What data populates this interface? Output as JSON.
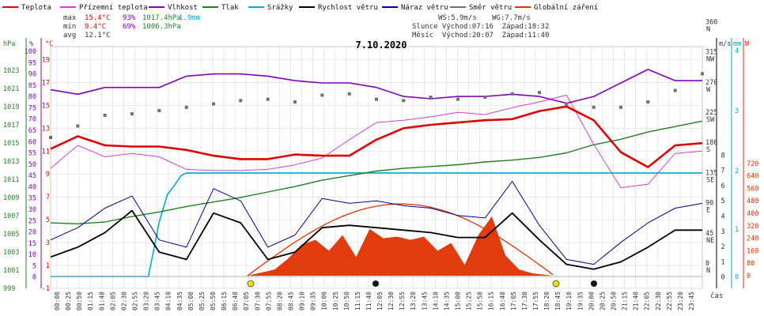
{
  "legend": [
    {
      "label": "Teplota",
      "color": "#e00000"
    },
    {
      "label": "Přízemní teplota",
      "color": "#d040d0"
    },
    {
      "label": "Vlhkost",
      "color": "#8000c0"
    },
    {
      "label": "Tlak",
      "color": "#208020"
    },
    {
      "label": "Srážky",
      "color": "#00a8d8"
    },
    {
      "label": "Rychlost větru",
      "color": "#000000"
    },
    {
      "label": "Náraz větru",
      "color": "#000090"
    },
    {
      "label": "Směr větru",
      "color": "#707070"
    },
    {
      "label": "Globální záření",
      "color": "#e03000"
    }
  ],
  "stats": {
    "max_label": "max",
    "max_temp": "15.4°C",
    "max_hum": "93%",
    "max_press": "1017.4hPa",
    "rain_total": "1.9mm",
    "min_label": "min",
    "min_temp": "9.4°C",
    "min_hum": "69%",
    "min_press": "1006.3hPa",
    "avg_label": "avg",
    "avg_temp": "12.1°C"
  },
  "wind_info": {
    "ws": "WS:5.9m/s",
    "wg": "WG:7.7m/s",
    "sun": "Slunce Východ:07:16  Západ:18:32",
    "moon": "Měsíc  Východ:20:07  Západ:11:40"
  },
  "chart_data": {
    "type": "line",
    "title": "7.10.2020",
    "xlabel": "čas",
    "x_ticks": [
      "00:00",
      "00:25",
      "00:50",
      "01:15",
      "01:40",
      "02:05",
      "02:30",
      "02:55",
      "03:20",
      "03:45",
      "04:10",
      "04:35",
      "05:00",
      "05:25",
      "05:50",
      "06:15",
      "06:40",
      "07:05",
      "07:30",
      "07:55",
      "08:20",
      "08:45",
      "09:10",
      "09:35",
      "10:00",
      "10:25",
      "10:50",
      "11:15",
      "11:40",
      "12:05",
      "12:30",
      "12:55",
      "13:20",
      "13:45",
      "14:10",
      "14:35",
      "15:00",
      "15:25",
      "15:50",
      "16:15",
      "16:40",
      "17:05",
      "17:30",
      "17:55",
      "18:20",
      "18:45",
      "19:10",
      "19:35",
      "20:00",
      "20:25",
      "20:50",
      "21:15",
      "21:40",
      "22:05",
      "22:30",
      "22:55",
      "23:20",
      "23:45"
    ],
    "axes": {
      "hpa": {
        "unit": "hPa",
        "ticks": [
          "999",
          "1001",
          "1003",
          "1005",
          "1007",
          "1009",
          "1011",
          "1013",
          "1015",
          "1017",
          "1019",
          "1021",
          "1023"
        ],
        "range": [
          999,
          1025
        ]
      },
      "pct": {
        "unit": "%",
        "ticks": [
          "0",
          "5",
          "10",
          "15",
          "20",
          "25",
          "30",
          "35",
          "40",
          "45",
          "50",
          "55",
          "60",
          "65",
          "70",
          "75",
          "80",
          "85",
          "90",
          "95",
          "100"
        ],
        "range": [
          -5,
          100
        ]
      },
      "temp": {
        "unit": "°C",
        "ticks": [
          "-1",
          "1",
          "3",
          "5",
          "7",
          "9",
          "11",
          "13",
          "15",
          "17",
          "19"
        ],
        "range": [
          -1,
          20
        ]
      },
      "ms": {
        "unit": "m/s",
        "ticks": [
          "0",
          "1",
          "2",
          "3",
          "4",
          "5",
          "6",
          "7",
          "8"
        ],
        "range": [
          -1,
          20
        ]
      },
      "dir": {
        "ticks": [
          "0 N",
          "45 NE",
          "90 E",
          "135 SE",
          "180 S",
          "225 SW",
          "270 W",
          "315 NW",
          "360 N"
        ]
      },
      "mm": {
        "unit": "mm",
        "ticks": [
          "0",
          "1",
          "2",
          "3",
          "4"
        ],
        "range": [
          -0.5,
          5
        ]
      },
      "w": {
        "unit": "W",
        "ticks": [
          "0",
          "80",
          "160",
          "240",
          "320",
          "400",
          "480",
          "560",
          "640",
          "720"
        ],
        "range": [
          -80,
          800
        ]
      }
    },
    "series": [
      {
        "name": "Teplota",
        "unit": "°C",
        "x": [
          0,
          1,
          2,
          3,
          4,
          5,
          6,
          7,
          8,
          9,
          10,
          11,
          12,
          13,
          14,
          15,
          16,
          17,
          18,
          19,
          20,
          21,
          22,
          23,
          24
        ],
        "values": [
          11.2,
          12.3,
          11.5,
          11.4,
          11.4,
          11.1,
          10.6,
          10.3,
          10.3,
          10.7,
          10.6,
          10.6,
          12.0,
          13.0,
          13.3,
          13.5,
          13.7,
          13.8,
          14.5,
          14.9,
          13.7,
          10.9,
          9.6,
          11.5,
          11.7
        ]
      },
      {
        "name": "Přízemní teplota",
        "unit": "°C",
        "x": [
          0,
          1,
          2,
          3,
          4,
          5,
          6,
          7,
          8,
          9,
          10,
          11,
          12,
          13,
          14,
          15,
          16,
          17,
          18,
          19,
          20,
          21,
          22,
          23,
          24
        ],
        "values": [
          9.5,
          11.5,
          10.5,
          10.8,
          10.5,
          9.4,
          9.3,
          9.3,
          9.4,
          9.8,
          10.4,
          12.0,
          13.5,
          13.7,
          14.0,
          14.4,
          14.2,
          14.8,
          15.3,
          15.9,
          11.6,
          7.8,
          8.1,
          10.8,
          11.0
        ]
      },
      {
        "name": "Vlhkost",
        "unit": "%",
        "x": [
          0,
          1,
          2,
          3,
          4,
          5,
          6,
          7,
          8,
          9,
          10,
          11,
          12,
          13,
          14,
          15,
          16,
          17,
          18,
          19,
          20,
          21,
          22,
          23,
          24
        ],
        "values": [
          83,
          81,
          84,
          84,
          84,
          89,
          90,
          90,
          89,
          87,
          86,
          86,
          84,
          80,
          79,
          80,
          80,
          81,
          80,
          77,
          80,
          86,
          92,
          87,
          87
        ]
      },
      {
        "name": "Tlak",
        "unit": "hPa",
        "x": [
          0,
          1,
          2,
          3,
          4,
          5,
          6,
          7,
          8,
          9,
          10,
          11,
          12,
          13,
          14,
          15,
          16,
          17,
          18,
          19,
          20,
          21,
          22,
          23,
          24
        ],
        "values": [
          1006.2,
          1006.1,
          1006.3,
          1006.9,
          1007.4,
          1008.0,
          1008.5,
          1009.0,
          1009.6,
          1010.2,
          1010.9,
          1011.4,
          1011.9,
          1012.2,
          1012.4,
          1012.6,
          1012.9,
          1013.1,
          1013.4,
          1013.9,
          1014.8,
          1015.4,
          1016.2,
          1016.8,
          1017.4
        ]
      },
      {
        "name": "Srážky",
        "unit": "mm",
        "x": [
          0,
          3.6,
          3.8,
          4.0,
          4.3,
          4.6,
          4.8,
          5.0,
          24
        ],
        "values": [
          0,
          0,
          0.5,
          1.0,
          1.5,
          1.7,
          1.85,
          1.9,
          1.9
        ]
      },
      {
        "name": "Rychlost větru",
        "unit": "m/s",
        "x": [
          0,
          1,
          2,
          3,
          4,
          5,
          6,
          7,
          8,
          9,
          10,
          11,
          12,
          13,
          14,
          15,
          16,
          17,
          18,
          19,
          20,
          21,
          22,
          23,
          24
        ],
        "values": [
          0.8,
          1.2,
          1.8,
          2.7,
          1.0,
          0.7,
          2.6,
          2.2,
          0.7,
          1.0,
          2.0,
          2.1,
          2.0,
          1.9,
          1.8,
          1.6,
          1.6,
          2.6,
          1.5,
          0.5,
          0.3,
          0.6,
          1.2,
          1.9,
          1.9
        ]
      },
      {
        "name": "Náraz větru",
        "unit": "m/s",
        "x": [
          0,
          1,
          2,
          3,
          4,
          5,
          6,
          7,
          8,
          9,
          10,
          11,
          12,
          13,
          14,
          15,
          16,
          17,
          18,
          19,
          20,
          21,
          22,
          23,
          24
        ],
        "values": [
          1.5,
          2.0,
          2.8,
          3.3,
          1.5,
          1.2,
          3.6,
          3.1,
          1.2,
          1.7,
          3.2,
          3.0,
          3.1,
          2.9,
          2.8,
          2.5,
          2.4,
          3.9,
          2.1,
          0.7,
          0.5,
          1.4,
          2.2,
          2.8,
          3.0
        ]
      },
      {
        "name": "Směr větru",
        "unit": "°",
        "x": [
          0,
          1,
          2,
          3,
          4,
          5,
          6,
          7,
          8,
          9,
          10,
          11,
          12,
          13,
          14,
          15,
          16,
          17,
          18,
          19,
          20,
          21,
          22,
          23,
          24
        ],
        "values": [
          205,
          222,
          238,
          240,
          245,
          250,
          255,
          260,
          262,
          258,
          268,
          270,
          262,
          260,
          265,
          262,
          265,
          270,
          272,
          255,
          250,
          250,
          258,
          275,
          300
        ]
      },
      {
        "name": "Globální záření",
        "unit": "W",
        "x": [
          0,
          7.25,
          7.75,
          8.25,
          8.75,
          9.25,
          9.75,
          10.25,
          10.75,
          11.25,
          11.75,
          12.25,
          12.75,
          13.25,
          13.75,
          14.25,
          14.75,
          15.25,
          15.75,
          16.25,
          16.75,
          17.25,
          17.75,
          18.5,
          24
        ],
        "values": [
          0,
          0,
          20,
          40,
          110,
          200,
          230,
          160,
          260,
          120,
          300,
          240,
          250,
          230,
          250,
          160,
          210,
          70,
          260,
          380,
          130,
          40,
          15,
          0,
          0
        ]
      }
    ]
  }
}
